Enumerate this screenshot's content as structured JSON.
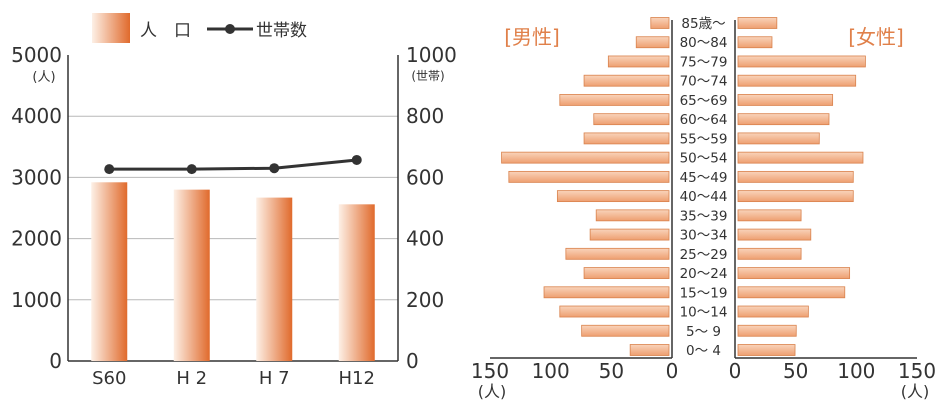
{
  "chart_data": [
    {
      "type": "bar+line",
      "categories": [
        "S60",
        "H 2",
        "H 7",
        "H12"
      ],
      "legend": {
        "bar_label": "人　口",
        "line_label": "世帯数",
        "position": "top"
      },
      "left_axis": {
        "unit": "(人)",
        "ylim": [
          0,
          5000
        ],
        "ticks": [
          "0",
          "1000",
          "2000",
          "3000",
          "4000",
          "5000"
        ]
      },
      "right_axis": {
        "unit": "(世帯)",
        "ylim": [
          0,
          1000
        ],
        "ticks": [
          "0",
          "200",
          "400",
          "600",
          "800",
          "1000"
        ]
      },
      "series": [
        {
          "name": "人　口",
          "type": "bar",
          "axis": "left",
          "values": [
            2920,
            2800,
            2670,
            2560
          ]
        },
        {
          "name": "世帯数",
          "type": "line",
          "axis": "right",
          "values": [
            627,
            627,
            630,
            657
          ]
        }
      ],
      "gridlines": [
        1000,
        2000,
        3000,
        4000
      ]
    },
    {
      "type": "population-pyramid",
      "age_groups": [
        "0～ 4",
        "5～ 9",
        "10～14",
        "15～19",
        "20～24",
        "25～29",
        "30～34",
        "35～39",
        "40～44",
        "45～49",
        "50～54",
        "55～59",
        "60～64",
        "65～69",
        "70～74",
        "75～79",
        "80～84",
        "85歳～"
      ],
      "male": {
        "label": "[男性]",
        "values": [
          32,
          72,
          90,
          103,
          70,
          85,
          65,
          60,
          92,
          132,
          138,
          70,
          62,
          90,
          70,
          50,
          27,
          15
        ]
      },
      "female": {
        "label": "[女性]",
        "values": [
          47,
          48,
          58,
          88,
          92,
          52,
          60,
          52,
          95,
          95,
          103,
          67,
          75,
          78,
          97,
          105,
          28,
          32
        ]
      },
      "x_ticks": [
        "150",
        "100",
        "50",
        "0"
      ],
      "x_unit": "(人)",
      "xlim": [
        0,
        150
      ]
    }
  ],
  "colors": {
    "bar_dark": "#e06a2c",
    "bar_light": "#fdf0e6",
    "pyramid_fill": "#f3b088",
    "pyramid_stroke": "#d9824d",
    "label_orange": "#e0804a",
    "line": "#333333"
  }
}
